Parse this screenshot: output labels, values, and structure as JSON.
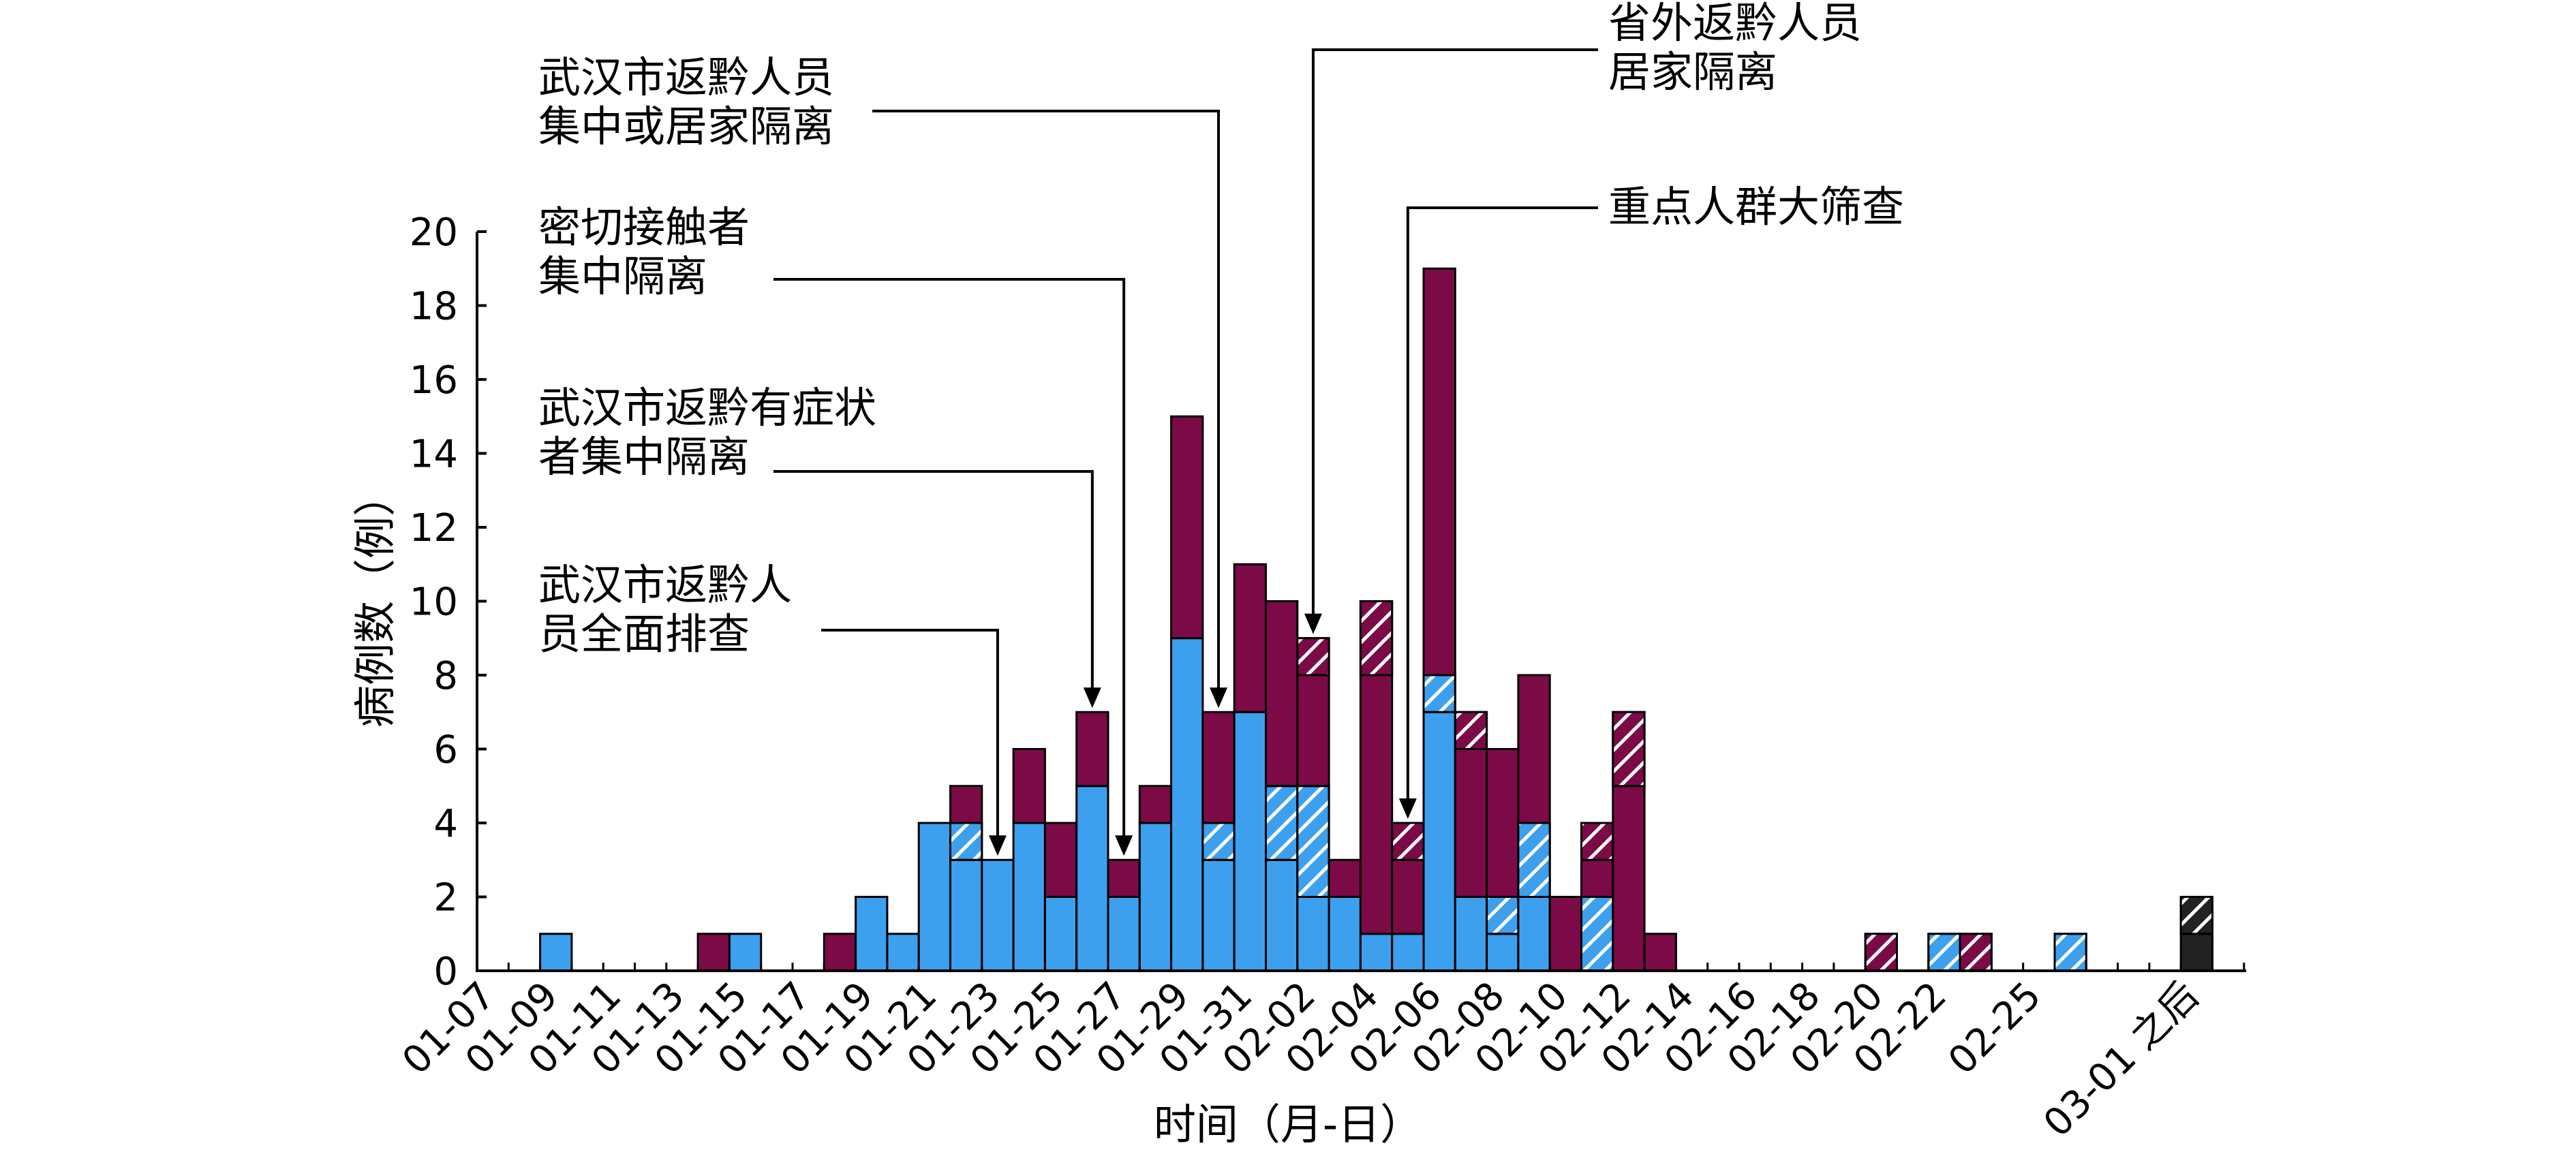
{
  "chart_data": {
    "type": "bar",
    "stacked": true,
    "ylabel": "病例数（例）",
    "xlabel": "时间（月-日）",
    "ylim": [
      0,
      20
    ],
    "y_ticks": [
      "0",
      "2",
      "4",
      "6",
      "8",
      "10",
      "12",
      "14",
      "16",
      "18",
      "20"
    ],
    "x_tick_labels": [
      "01-07",
      "01-09",
      "01-11",
      "01-13",
      "01-15",
      "01-17",
      "01-19",
      "01-21",
      "01-23",
      "01-25",
      "01-27",
      "01-29",
      "01-31",
      "02-02",
      "02-04",
      "02-06",
      "02-08",
      "02-10",
      "02-12",
      "02-14",
      "02-16",
      "02-18",
      "02-20",
      "02-22",
      "02-25",
      "03-01 之后"
    ],
    "colors": {
      "blue": "#3da0ee",
      "maroon": "#7c0a46",
      "black": "#222222"
    },
    "segment_order": [
      "blue",
      "blue_hatched",
      "maroon",
      "maroon_hatched",
      "black",
      "black_hatched"
    ],
    "bars": [
      {
        "slot": 2,
        "blue": 1
      },
      {
        "slot": 7,
        "maroon": 1
      },
      {
        "slot": 8,
        "blue": 1
      },
      {
        "slot": 11,
        "maroon": 1
      },
      {
        "slot": 12,
        "blue": 2
      },
      {
        "slot": 13,
        "blue": 1
      },
      {
        "slot": 14,
        "blue": 4
      },
      {
        "slot": 15,
        "blue": 3,
        "blue_hatched": 1,
        "maroon": 1
      },
      {
        "slot": 16,
        "blue": 3
      },
      {
        "slot": 17,
        "blue": 4,
        "maroon": 2
      },
      {
        "slot": 18,
        "blue": 2,
        "maroon": 2
      },
      {
        "slot": 19,
        "blue": 5,
        "maroon": 2
      },
      {
        "slot": 20,
        "blue": 2,
        "maroon": 1
      },
      {
        "slot": 21,
        "blue": 4,
        "maroon": 1
      },
      {
        "slot": 22,
        "blue": 9,
        "maroon": 6
      },
      {
        "slot": 23,
        "blue": 3,
        "blue_hatched": 1,
        "maroon": 3
      },
      {
        "slot": 24,
        "blue": 7,
        "maroon": 4
      },
      {
        "slot": 25,
        "blue": 3,
        "blue_hatched": 2,
        "maroon": 5
      },
      {
        "slot": 26,
        "blue": 2,
        "blue_hatched": 3,
        "maroon": 3,
        "maroon_hatched": 1
      },
      {
        "slot": 27,
        "blue": 2,
        "maroon": 1
      },
      {
        "slot": 28,
        "blue": 1,
        "maroon": 7,
        "maroon_hatched": 2
      },
      {
        "slot": 29,
        "blue": 1,
        "maroon": 2,
        "maroon_hatched": 1
      },
      {
        "slot": 30,
        "blue": 7,
        "blue_hatched": 1,
        "maroon": 11
      },
      {
        "slot": 31,
        "blue": 2,
        "maroon": 4,
        "maroon_hatched": 1
      },
      {
        "slot": 32,
        "blue": 1,
        "blue_hatched": 1,
        "maroon": 4
      },
      {
        "slot": 33,
        "blue": 2,
        "blue_hatched": 2,
        "maroon": 4
      },
      {
        "slot": 34,
        "maroon": 2
      },
      {
        "slot": 35,
        "blue_hatched": 2,
        "maroon": 1,
        "maroon_hatched": 1
      },
      {
        "slot": 36,
        "maroon": 5,
        "maroon_hatched": 2
      },
      {
        "slot": 37,
        "maroon": 1
      },
      {
        "slot": 44,
        "maroon_hatched": 1
      },
      {
        "slot": 46,
        "blue_hatched": 1
      },
      {
        "slot": 47,
        "maroon_hatched": 1
      },
      {
        "slot": 50,
        "blue_hatched": 1
      },
      {
        "slot": 54,
        "black": 1,
        "black_hatched": 1
      }
    ],
    "annotations": [
      {
        "lines": [
          "武汉市返黔人",
          "员全面排查"
        ],
        "target_slot": 16,
        "target_value": 3
      },
      {
        "lines": [
          "武汉市返黔有症状",
          "者集中隔离"
        ],
        "target_slot": 19,
        "target_value": 7
      },
      {
        "lines": [
          "密切接触者",
          "集中隔离"
        ],
        "target_slot": 20,
        "target_value": 3
      },
      {
        "lines": [
          "武汉市返黔人员",
          "集中或居家隔离"
        ],
        "target_slot": 23,
        "target_value": 7
      },
      {
        "lines": [
          "省外返黔人员",
          "居家隔离"
        ],
        "target_slot": 26,
        "target_value": 9
      },
      {
        "lines": [
          "重点人群大筛查"
        ],
        "target_slot": 29,
        "target_value": 4
      }
    ]
  }
}
